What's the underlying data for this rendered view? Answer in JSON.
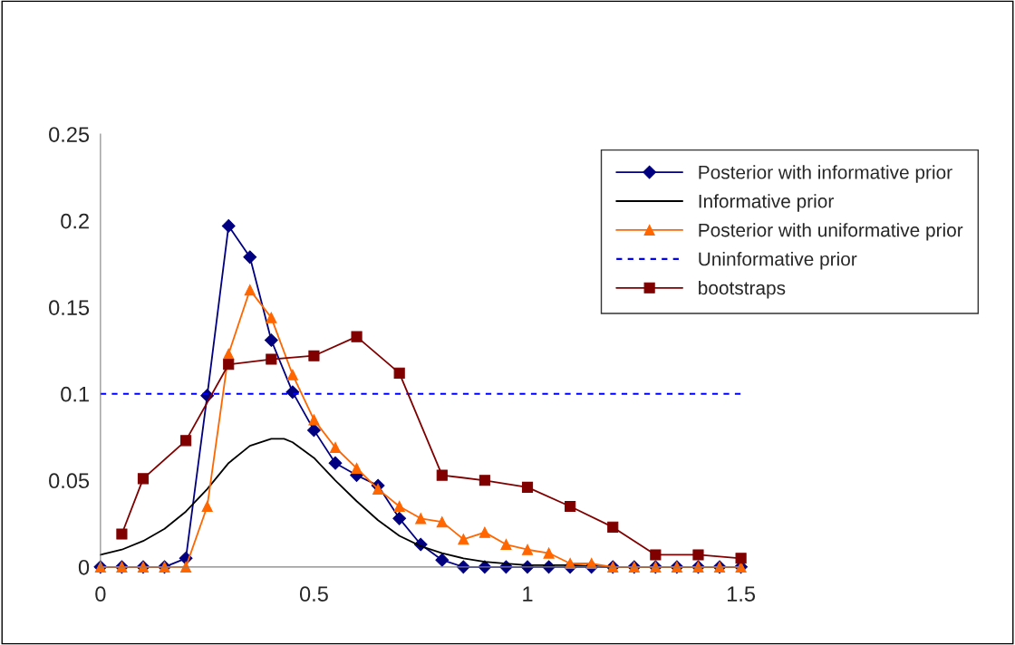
{
  "chart_data": {
    "type": "line",
    "xlim": [
      0,
      1.5
    ],
    "ylim": [
      0,
      0.25
    ],
    "xticks": [
      0,
      0.5,
      1,
      1.5
    ],
    "yticks": [
      0,
      0.05,
      0.1,
      0.15,
      0.2,
      0.25
    ],
    "grid": false,
    "legend": "top right",
    "series": [
      {
        "name": "Posterior with informative prior",
        "color": "#000080",
        "marker": "diamond",
        "line_style": "solid",
        "x": [
          0,
          0.05,
          0.1,
          0.15,
          0.2,
          0.25,
          0.3,
          0.35,
          0.4,
          0.45,
          0.5,
          0.55,
          0.6,
          0.65,
          0.7,
          0.75,
          0.8,
          0.85,
          0.9,
          0.95,
          1.0,
          1.05,
          1.1,
          1.15,
          1.2,
          1.25,
          1.3,
          1.35,
          1.4,
          1.45,
          1.5
        ],
        "values": [
          0,
          0,
          0,
          0,
          0.005,
          0.099,
          0.197,
          0.179,
          0.131,
          0.101,
          0.079,
          0.06,
          0.053,
          0.047,
          0.028,
          0.013,
          0.004,
          0,
          0,
          0,
          0,
          0,
          0,
          0,
          0,
          0,
          0,
          0,
          0,
          0,
          0
        ]
      },
      {
        "name": "Informative prior",
        "color": "#000000",
        "marker": "none",
        "line_style": "solid",
        "x": [
          0,
          0.05,
          0.1,
          0.15,
          0.2,
          0.25,
          0.3,
          0.35,
          0.4,
          0.43,
          0.45,
          0.5,
          0.55,
          0.6,
          0.65,
          0.7,
          0.75,
          0.8,
          0.85,
          0.9,
          0.95,
          1.0,
          1.1,
          1.2,
          1.3,
          1.5
        ],
        "values": [
          0.007,
          0.01,
          0.015,
          0.022,
          0.032,
          0.045,
          0.06,
          0.07,
          0.074,
          0.074,
          0.072,
          0.063,
          0.05,
          0.038,
          0.027,
          0.018,
          0.012,
          0.008,
          0.005,
          0.003,
          0.002,
          0.001,
          0.001,
          0,
          0,
          0
        ]
      },
      {
        "name": "Posterior with uniformative prior",
        "color": "#ff6600",
        "marker": "triangle",
        "line_style": "solid",
        "x": [
          0,
          0.05,
          0.1,
          0.15,
          0.2,
          0.25,
          0.3,
          0.35,
          0.4,
          0.45,
          0.5,
          0.55,
          0.6,
          0.65,
          0.7,
          0.75,
          0.8,
          0.85,
          0.9,
          0.95,
          1.0,
          1.05,
          1.1,
          1.15,
          1.2,
          1.25,
          1.3,
          1.35,
          1.4,
          1.45,
          1.5
        ],
        "values": [
          0,
          0,
          0,
          0,
          0,
          0.035,
          0.123,
          0.16,
          0.144,
          0.111,
          0.085,
          0.069,
          0.057,
          0.045,
          0.035,
          0.028,
          0.026,
          0.016,
          0.02,
          0.013,
          0.01,
          0.008,
          0.002,
          0.002,
          0,
          0,
          0,
          0,
          0,
          0,
          0
        ]
      },
      {
        "name": "Uninformative prior",
        "color": "#0000ff",
        "marker": "none",
        "line_style": "dashed",
        "x": [
          0,
          1.5
        ],
        "values": [
          0.1,
          0.1
        ]
      },
      {
        "name": "bootstraps",
        "color": "#800000",
        "marker": "square",
        "line_style": "solid",
        "x": [
          0.05,
          0.1,
          0.2,
          0.3,
          0.4,
          0.5,
          0.6,
          0.7,
          0.8,
          0.9,
          1.0,
          1.1,
          1.2,
          1.3,
          1.4,
          1.5
        ],
        "values": [
          0.019,
          0.051,
          0.073,
          0.117,
          0.12,
          0.122,
          0.133,
          0.112,
          0.053,
          0.05,
          0.046,
          0.035,
          0.023,
          0.007,
          0.007,
          0.005
        ]
      }
    ]
  }
}
